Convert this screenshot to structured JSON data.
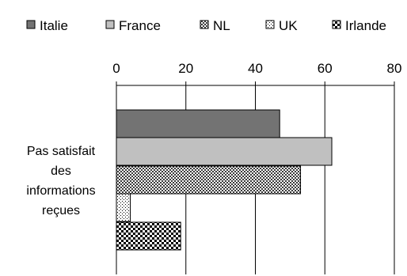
{
  "chart_data": {
    "type": "bar",
    "orientation": "horizontal",
    "categories": [
      "Pas satisfait des informations reçues"
    ],
    "category_label_lines": [
      "Pas satisfait",
      "des",
      "informations",
      "reçues"
    ],
    "series": [
      {
        "name": "Italie",
        "values": [
          47
        ],
        "color": "#737373",
        "pattern": "solid"
      },
      {
        "name": "France",
        "values": [
          62
        ],
        "color": "#c0c0c0",
        "pattern": "solid"
      },
      {
        "name": "NL",
        "values": [
          53
        ],
        "color": "#808080",
        "pattern": "checker-fine"
      },
      {
        "name": "UK",
        "values": [
          4
        ],
        "color": "#ffffff",
        "pattern": "dotted"
      },
      {
        "name": "Irlande",
        "values": [
          18.5
        ],
        "color": "#000000",
        "pattern": "checker-coarse"
      }
    ],
    "xlim": [
      0,
      80
    ],
    "xticks": [
      "0",
      "20",
      "40",
      "60",
      "80"
    ],
    "xaxis_position": "top",
    "grid": "vertical",
    "legend_position": "top"
  }
}
